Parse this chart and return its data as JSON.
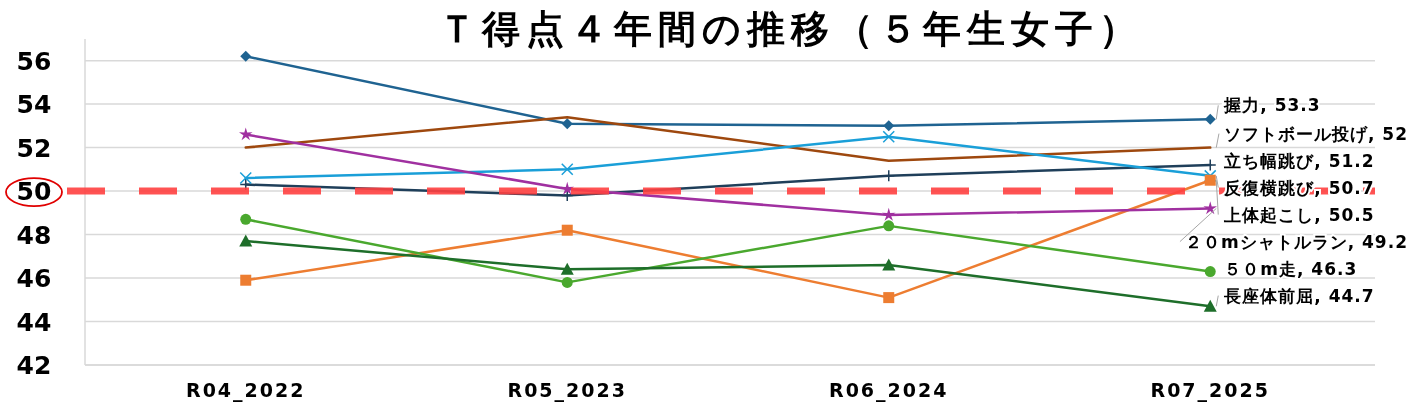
{
  "chart_data": {
    "type": "line",
    "title": "Ｔ得点４年間の推移（５年生女子）",
    "categories": [
      "R04_2022",
      "R05_2023",
      "R06_2024",
      "R07_2025"
    ],
    "ylim": [
      42,
      57
    ],
    "yticks": [
      42,
      44,
      46,
      48,
      50,
      52,
      54,
      56
    ],
    "grid": "y",
    "legend": false,
    "ref_lines": [
      {
        "axis": "y",
        "value": 50,
        "color": "#ff4040",
        "line_style": "dashed"
      }
    ],
    "series": [
      {
        "color": "#1f6391",
        "marker": "diamond",
        "values": [
          56.2,
          53.1,
          53.0,
          53.3
        ],
        "value_labels": [
          null,
          null,
          null,
          "握力, 53.3"
        ]
      },
      {
        "color": "#9e480e",
        "marker": "none",
        "values": [
          52.0,
          53.4,
          51.4,
          52
        ],
        "value_labels": [
          null,
          null,
          null,
          "ソフトボール投げ, 52"
        ]
      },
      {
        "color": "#1f3f5a",
        "marker": "cross",
        "values": [
          50.3,
          49.8,
          50.7,
          51.2
        ],
        "value_labels": [
          null,
          null,
          null,
          "立ち幅跳び, 51.2"
        ]
      },
      {
        "color": "#1a9fd8",
        "marker": "x",
        "values": [
          50.6,
          51.0,
          52.5,
          50.7
        ],
        "value_labels": [
          null,
          null,
          null,
          "反復横跳び, 50.7"
        ]
      },
      {
        "color": "#ed7d31",
        "marker": "square",
        "values": [
          45.9,
          48.2,
          45.1,
          50.5
        ],
        "value_labels": [
          null,
          null,
          null,
          "上体起こし, 50.5"
        ]
      },
      {
        "color": "#a030a0",
        "marker": "star",
        "values": [
          52.6,
          50.1,
          48.9,
          49.2
        ],
        "value_labels": [
          null,
          null,
          null,
          "２０mシャトルラン, 49.2"
        ]
      },
      {
        "color": "#4aa82e",
        "marker": "circle",
        "values": [
          48.7,
          45.8,
          48.4,
          46.3
        ],
        "value_labels": [
          null,
          null,
          null,
          "５０m走, 46.3"
        ]
      },
      {
        "color": "#1e6e2a",
        "marker": "triangle",
        "values": [
          47.7,
          46.4,
          46.6,
          44.7
        ],
        "value_labels": [
          null,
          null,
          null,
          "長座体前屈, 44.7"
        ]
      }
    ]
  }
}
